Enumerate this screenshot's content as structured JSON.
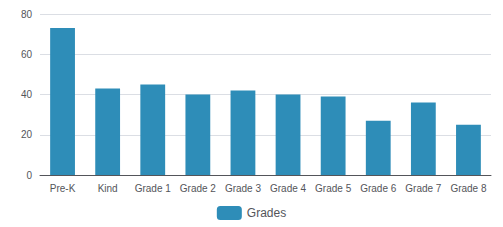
{
  "chart_data": {
    "type": "bar",
    "categories": [
      "Pre-K",
      "Kind",
      "Grade 1",
      "Grade 2",
      "Grade 3",
      "Grade 4",
      "Grade 5",
      "Grade 6",
      "Grade 7",
      "Grade 8"
    ],
    "series": [
      {
        "name": "Grades",
        "color": "#2e8db8",
        "values": [
          73,
          43,
          45,
          40,
          42,
          40,
          39,
          27,
          36,
          25
        ]
      }
    ],
    "ylim": [
      0,
      80
    ],
    "yticks": [
      0,
      20,
      40,
      60,
      80
    ],
    "grid": true,
    "legend": "bottom"
  }
}
